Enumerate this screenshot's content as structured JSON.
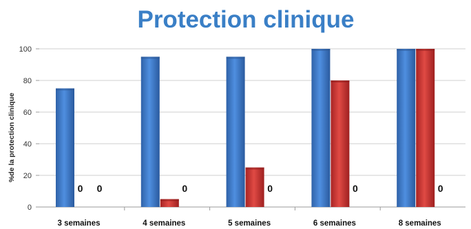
{
  "chart_data": {
    "type": "bar",
    "title": "Protection clinique",
    "ylabel": "%de la protection clinique",
    "xlabel": "",
    "ylim": [
      0,
      100
    ],
    "yticks": [
      0,
      20,
      40,
      60,
      80,
      100
    ],
    "grid": true,
    "categories": [
      "3 semaines",
      "4 semaines",
      "5 semaines",
      "6 semaines",
      "8 semaines"
    ],
    "series": [
      {
        "color": "#3f7fd0",
        "values": [
          75,
          95,
          95,
          100,
          100
        ]
      },
      {
        "color": "#d43a36",
        "values": [
          0,
          5,
          25,
          80,
          100
        ]
      },
      {
        "color": "#d43a36",
        "values": [
          0,
          0,
          0,
          0,
          0
        ]
      }
    ],
    "zero_label": "0"
  }
}
